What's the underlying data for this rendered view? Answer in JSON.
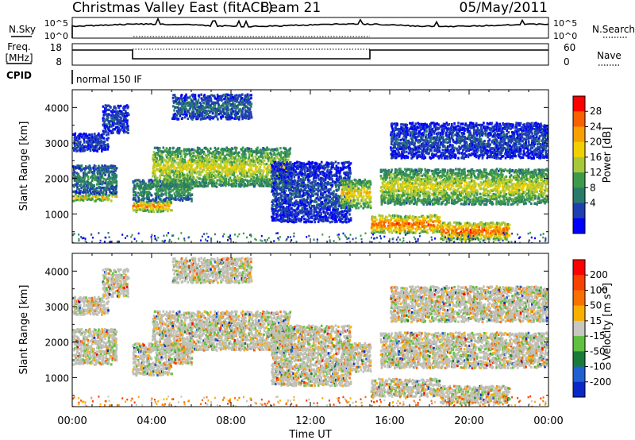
{
  "header": {
    "station": "Christmas Valley East (fitACF)",
    "beam": "Beam 21",
    "date": "05/May/2011"
  },
  "noise_panel": {
    "left_label": "N.Sky",
    "left_ticks": [
      "10^5",
      "10^0"
    ],
    "right_label": "N.Search",
    "right_ticks": [
      "10^5",
      "10^0"
    ]
  },
  "freq_panel": {
    "left_label_1": "Freq.",
    "left_label_2": "[MHz]",
    "left_ticks": [
      "18",
      "8"
    ],
    "right_label": "Nave",
    "right_ticks": [
      "60",
      "0"
    ]
  },
  "cpid_panel": {
    "label": "CPID",
    "mode": "normal 150 IF"
  },
  "colors": {
    "power_scale": [
      "#0000ff",
      "#1f3fb0",
      "#2a7a6a",
      "#3d9a4a",
      "#a8c83a",
      "#f0d000",
      "#f8a000",
      "#f86000",
      "#ff0000"
    ],
    "velocity_scale": [
      "#0a28c8",
      "#2060d0",
      "#1a7a3a",
      "#60c040",
      "#c8c8c0",
      "#f8b000",
      "#f87000",
      "#f84000",
      "#ff0000"
    ],
    "ground_scatter": "#c0c0b8"
  },
  "chart_data": [
    {
      "type": "heatmap",
      "panel": "power",
      "ylabel": "Slant Range [km]",
      "yticks": [
        "4000",
        "3000",
        "2000",
        "1000"
      ],
      "ylim": [
        180,
        4500
      ],
      "xlim": [
        0,
        24
      ],
      "colorbar_label": "Power [dB]",
      "colorbar_ticks": [
        "28",
        "24",
        "20",
        "16",
        "12",
        "8",
        "4"
      ],
      "colorbar_range": [
        0,
        32
      ],
      "bands": [
        {
          "t": [
            0,
            2.2
          ],
          "r": [
            1400,
            1600
          ],
          "p": 24
        },
        {
          "t": [
            0,
            2.2
          ],
          "r": [
            1600,
            2400
          ],
          "p": 10
        },
        {
          "t": [
            0,
            1.8
          ],
          "r": [
            2800,
            3300
          ],
          "p": 6
        },
        {
          "t": [
            1.5,
            2.8
          ],
          "r": [
            3300,
            4100
          ],
          "p": 6
        },
        {
          "t": [
            3,
            5
          ],
          "r": [
            1100,
            1400
          ],
          "p": 26
        },
        {
          "t": [
            3,
            6
          ],
          "r": [
            1400,
            2000
          ],
          "p": 12
        },
        {
          "t": [
            4,
            11
          ],
          "r": [
            1800,
            2900
          ],
          "p": 18
        },
        {
          "t": [
            5,
            9
          ],
          "r": [
            3700,
            4400
          ],
          "p": 8
        },
        {
          "t": [
            10,
            14
          ],
          "r": [
            800,
            2500
          ],
          "p": 6
        },
        {
          "t": [
            13.5,
            15
          ],
          "r": [
            1200,
            2000
          ],
          "p": 20
        },
        {
          "t": [
            15,
            18.5
          ],
          "r": [
            500,
            1000
          ],
          "p": 28
        },
        {
          "t": [
            15.5,
            24
          ],
          "r": [
            1300,
            2300
          ],
          "p": 18
        },
        {
          "t": [
            18.5,
            22
          ],
          "r": [
            300,
            800
          ],
          "p": 28
        },
        {
          "t": [
            16,
            24
          ],
          "r": [
            2600,
            3600
          ],
          "p": 6
        }
      ]
    },
    {
      "type": "heatmap",
      "panel": "velocity",
      "ylabel": "Slant Range [km]",
      "yticks": [
        "4000",
        "3000",
        "2000",
        "1000"
      ],
      "ylim": [
        180,
        4500
      ],
      "xlim": [
        0,
        24
      ],
      "xticks": [
        "00:00",
        "04:00",
        "08:00",
        "12:00",
        "16:00",
        "20:00",
        "00:00"
      ],
      "xlabel": "Time UT",
      "colorbar_label": "Velocity [m s^-1]",
      "colorbar_ticks": [
        "200",
        "100",
        "50",
        "15",
        "-15",
        "-50",
        "-100",
        "-200"
      ],
      "colorbar_range": [
        -250,
        250
      ]
    }
  ]
}
